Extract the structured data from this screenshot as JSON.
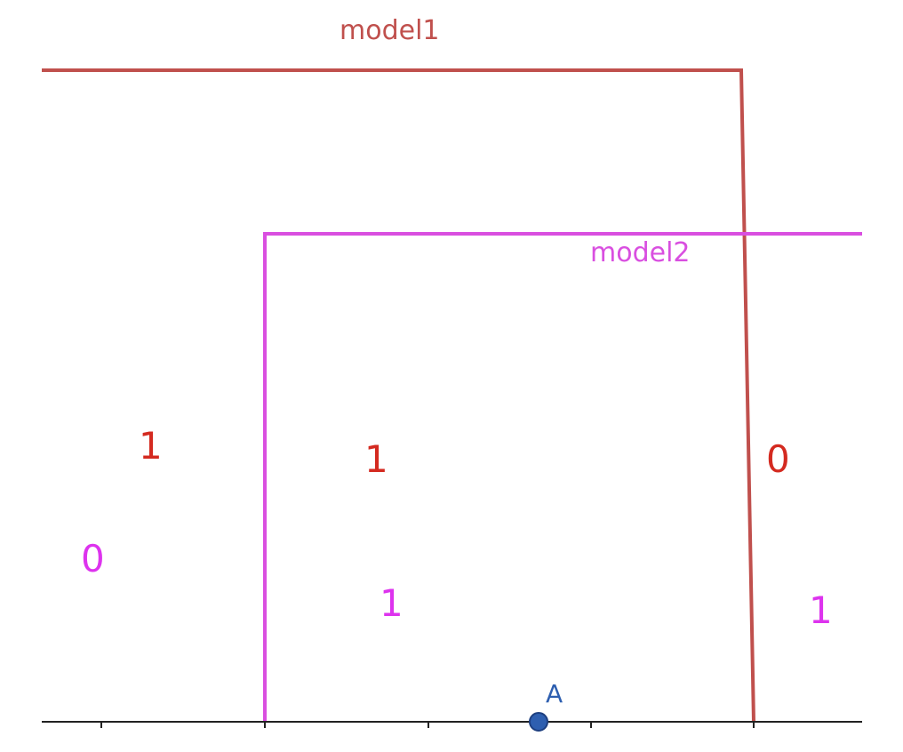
{
  "colors": {
    "model1": "#c0504d",
    "model2": "#d94fe0",
    "red_digit": "#d42a20",
    "magenta_digit": "#dd33ee",
    "axis": "#222222",
    "point": "#2e5fb0"
  },
  "labels": {
    "model1": "model1",
    "model2": "model2",
    "point": "A"
  },
  "regions": {
    "left": {
      "model1_value": "1",
      "model2_value": "0"
    },
    "middle": {
      "model1_value": "1",
      "model2_value": "1"
    },
    "right": {
      "model1_value": "0",
      "model2_value": "1"
    }
  }
}
